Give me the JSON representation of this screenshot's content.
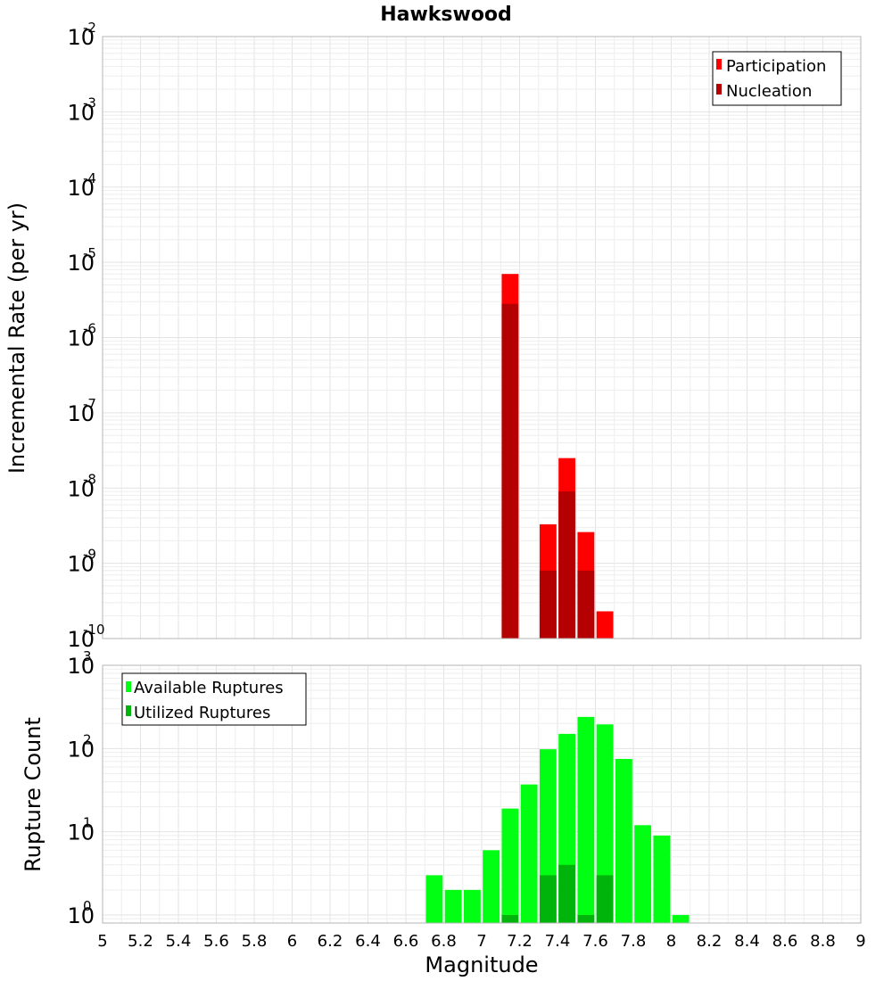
{
  "chart_data": [
    {
      "type": "bar",
      "title": "Hawkswood",
      "xlabel": "",
      "ylabel": "Incremental Rate (per yr)",
      "yscale": "log",
      "ylim": [
        1e-10,
        0.01
      ],
      "xlim": [
        5,
        9
      ],
      "bin_width": 0.1,
      "legend_position": "top-right",
      "series": [
        {
          "name": "Participation",
          "color": "#ff0000",
          "x": [
            7.15,
            7.35,
            7.45,
            7.55,
            7.65
          ],
          "values": [
            7e-06,
            3.3e-09,
            2.5e-08,
            2.6e-09,
            2.3e-10
          ]
        },
        {
          "name": "Nucleation",
          "color": "#b40000",
          "x": [
            7.15,
            7.35,
            7.45,
            7.55
          ],
          "values": [
            2.8e-06,
            8e-10,
            9e-09,
            8e-10
          ]
        }
      ]
    },
    {
      "type": "bar",
      "title": "",
      "xlabel": "Magnitude",
      "ylabel": "Rupture Count",
      "yscale": "log",
      "ylim": [
        0.8,
        1000
      ],
      "xlim": [
        5,
        9
      ],
      "bin_width": 0.1,
      "legend_position": "top-left",
      "series": [
        {
          "name": "Available Ruptures",
          "color": "#00ff12",
          "x": [
            6.75,
            6.85,
            6.95,
            7.05,
            7.15,
            7.25,
            7.35,
            7.45,
            7.55,
            7.65,
            7.75,
            7.85,
            7.95,
            8.05
          ],
          "values": [
            3,
            2,
            2,
            6,
            19,
            37,
            98,
            150,
            240,
            195,
            75,
            12,
            9,
            1
          ]
        },
        {
          "name": "Utilized Ruptures",
          "color": "#00b40c",
          "x": [
            7.15,
            7.35,
            7.45,
            7.55,
            7.65
          ],
          "values": [
            1,
            3,
            4,
            1,
            3
          ]
        }
      ]
    }
  ],
  "axes": {
    "top_y_ticks": [
      {
        "base": "10",
        "exp": "-2",
        "value": 0.01
      },
      {
        "base": "10",
        "exp": "-3",
        "value": 0.001
      },
      {
        "base": "10",
        "exp": "-4",
        "value": 0.0001
      },
      {
        "base": "10",
        "exp": "-5",
        "value": 1e-05
      },
      {
        "base": "10",
        "exp": "-6",
        "value": 1e-06
      },
      {
        "base": "10",
        "exp": "-7",
        "value": 1e-07
      },
      {
        "base": "10",
        "exp": "-8",
        "value": 1e-08
      },
      {
        "base": "10",
        "exp": "-9",
        "value": 1e-09
      },
      {
        "base": "10",
        "exp": "-10",
        "value": 1e-10
      }
    ],
    "bottom_y_ticks": [
      {
        "base": "10",
        "exp": "3",
        "value": 1000
      },
      {
        "base": "10",
        "exp": "2",
        "value": 100
      },
      {
        "base": "10",
        "exp": "1",
        "value": 10
      },
      {
        "base": "10",
        "exp": "0",
        "value": 1
      }
    ],
    "x_ticks": [
      "5",
      "5.2",
      "5.4",
      "5.6",
      "5.8",
      "6",
      "6.2",
      "6.4",
      "6.6",
      "6.8",
      "7",
      "7.2",
      "7.4",
      "7.6",
      "7.8",
      "8",
      "8.2",
      "8.4",
      "8.6",
      "8.8",
      "9"
    ]
  }
}
